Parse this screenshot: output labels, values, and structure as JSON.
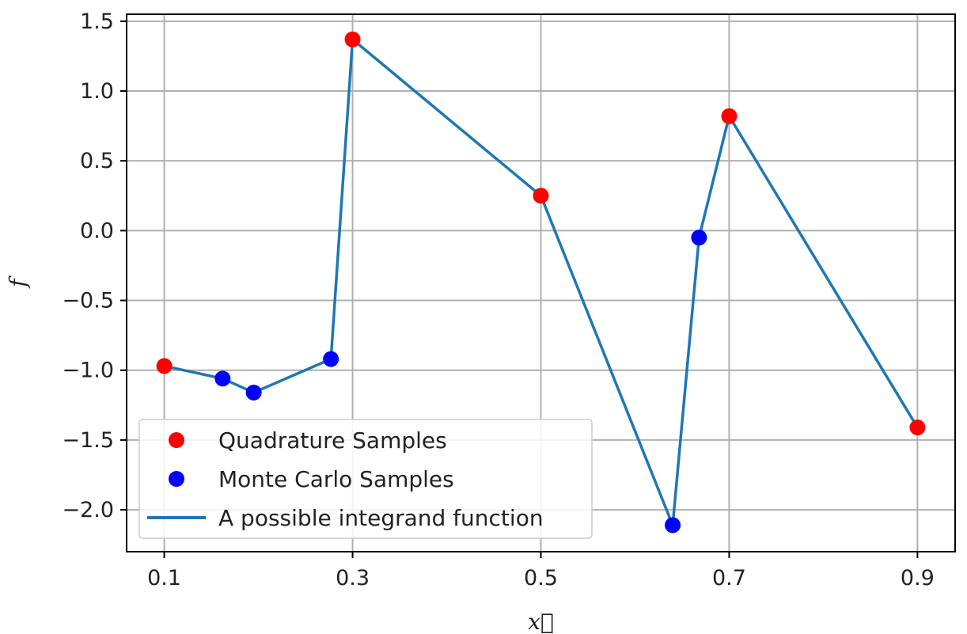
{
  "chart_data": {
    "type": "line",
    "title": "",
    "xlabel": "x⃗",
    "ylabel": "f",
    "xlim": [
      0.06,
      0.94
    ],
    "ylim": [
      -2.3,
      1.55
    ],
    "xticks": [
      0.1,
      0.3,
      0.5,
      0.7,
      0.9
    ],
    "xtick_labels": [
      "0.1",
      "0.3",
      "0.5",
      "0.7",
      "0.9"
    ],
    "yticks": [
      1.5,
      1.0,
      0.5,
      0.0,
      -0.5,
      -1.0,
      -1.5,
      -2.0
    ],
    "ytick_labels": [
      "1.5",
      "1.0",
      "0.5",
      "0.0",
      "−0.5",
      "−1.0",
      "−1.5",
      "−2.0"
    ],
    "grid": true,
    "legend_position": "lower-left",
    "series": [
      {
        "name": "Quadrature Samples",
        "kind": "scatter",
        "color": "#ff0000",
        "x": [
          0.1,
          0.3,
          0.5,
          0.7,
          0.9
        ],
        "y": [
          -0.97,
          1.37,
          0.25,
          0.82,
          -1.41
        ]
      },
      {
        "name": "Monte Carlo Samples",
        "kind": "scatter",
        "color": "#0000ff",
        "x": [
          0.162,
          0.195,
          0.277,
          0.64,
          0.668
        ],
        "y": [
          -1.06,
          -1.16,
          -0.92,
          -2.11,
          -0.05
        ]
      },
      {
        "name": "A possible integrand function",
        "kind": "line",
        "color": "#1f77b4",
        "x": [
          0.1,
          0.162,
          0.195,
          0.277,
          0.3,
          0.5,
          0.64,
          0.668,
          0.7,
          0.9
        ],
        "y": [
          -0.97,
          -1.06,
          -1.16,
          -0.92,
          1.37,
          0.25,
          -2.11,
          -0.05,
          0.82,
          -1.41
        ]
      }
    ]
  }
}
